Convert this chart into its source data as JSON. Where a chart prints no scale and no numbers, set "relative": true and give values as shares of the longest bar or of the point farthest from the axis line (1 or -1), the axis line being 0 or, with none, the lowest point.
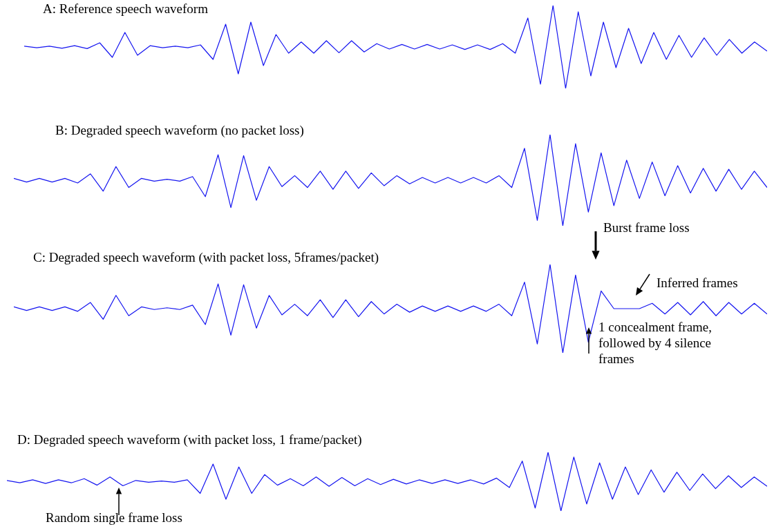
{
  "chart_data": [
    {
      "type": "line",
      "title": "A: Reference speech waveform",
      "relative": true,
      "categories": [
        null,
        null,
        null,
        null,
        null,
        null,
        null,
        null,
        null,
        null,
        null,
        null,
        null,
        null,
        null,
        null,
        null,
        null,
        null,
        null,
        null,
        null,
        null,
        null,
        null,
        null,
        null,
        null,
        null,
        null,
        null,
        null,
        null,
        null,
        null,
        null,
        null,
        null,
        null,
        null,
        null,
        null,
        null,
        null,
        null,
        null,
        null,
        null,
        null,
        null,
        null,
        null,
        null,
        null,
        null,
        null,
        null,
        null,
        null,
        null
      ],
      "series": [
        {
          "color": "#1414f0",
          "values": [
            0.51,
            0.49,
            0.51,
            0.485,
            0.515,
            0.48,
            0.55,
            0.375,
            0.675,
            0.4,
            0.515,
            0.49,
            0.51,
            0.49,
            0.525,
            0.35,
            0.775,
            0.175,
            0.8,
            0.275,
            0.65,
            0.425,
            0.56,
            0.425,
            0.575,
            0.43,
            0.575,
            0.44,
            0.54,
            0.475,
            0.53,
            0.475,
            0.53,
            0.475,
            0.525,
            0.47,
            0.525,
            0.47,
            0.54,
            0.425,
            0.85,
            0.05,
            1,
            0,
            0.925,
            0.15,
            0.8,
            0.25,
            0.725,
            0.3,
            0.675,
            0.35,
            0.64,
            0.375,
            0.61,
            0.4,
            0.59,
            0.425,
            0.56,
            0.45
          ]
        }
      ]
    },
    {
      "type": "line",
      "title": "B: Degraded speech waveform (no packet loss)",
      "relative": true,
      "categories": [
        null,
        null,
        null,
        null,
        null,
        null,
        null,
        null,
        null,
        null,
        null,
        null,
        null,
        null,
        null,
        null,
        null,
        null,
        null,
        null,
        null,
        null,
        null,
        null,
        null,
        null,
        null,
        null,
        null,
        null,
        null,
        null,
        null,
        null,
        null,
        null,
        null,
        null,
        null,
        null,
        null,
        null,
        null,
        null,
        null,
        null,
        null,
        null,
        null,
        null,
        null,
        null,
        null,
        null,
        null,
        null,
        null,
        null,
        null,
        null
      ],
      "series": [
        {
          "color": "#1414f0",
          "values": [
            0.52,
            0.48,
            0.52,
            0.48,
            0.52,
            0.47,
            0.57,
            0.38,
            0.65,
            0.42,
            0.52,
            0.49,
            0.51,
            0.49,
            0.54,
            0.32,
            0.78,
            0.2,
            0.77,
            0.28,
            0.65,
            0.43,
            0.55,
            0.42,
            0.6,
            0.4,
            0.6,
            0.41,
            0.58,
            0.44,
            0.55,
            0.46,
            0.53,
            0.47,
            0.53,
            0.47,
            0.53,
            0.47,
            0.55,
            0.42,
            0.85,
            0.06,
            1,
            0,
            0.9,
            0.15,
            0.8,
            0.22,
            0.72,
            0.3,
            0.7,
            0.33,
            0.66,
            0.36,
            0.63,
            0.38,
            0.62,
            0.4,
            0.6,
            0.42
          ]
        }
      ]
    },
    {
      "type": "line",
      "title": "C: Degraded speech waveform (with packet loss, 5frames/packet)",
      "relative": true,
      "categories": [
        null,
        null,
        null,
        null,
        null,
        null,
        null,
        null,
        null,
        null,
        null,
        null,
        null,
        null,
        null,
        null,
        null,
        null,
        null,
        null,
        null,
        null,
        null,
        null,
        null,
        null,
        null,
        null,
        null,
        null,
        null,
        null,
        null,
        null,
        null,
        null,
        null,
        null,
        null,
        null,
        null,
        null,
        null,
        null,
        null,
        null,
        null,
        null,
        null,
        null,
        null,
        null,
        null,
        null,
        null,
        null,
        null,
        null,
        null,
        null
      ],
      "annotations": [
        "Burst frame loss",
        "Inferred frames",
        "1 concealment frame, followed by 4 silence frames"
      ],
      "series": [
        {
          "color": "#1414f0",
          "values": [
            0.52,
            0.48,
            0.52,
            0.48,
            0.52,
            0.47,
            0.57,
            0.38,
            0.65,
            0.42,
            0.52,
            0.49,
            0.51,
            0.49,
            0.54,
            0.32,
            0.78,
            0.2,
            0.77,
            0.28,
            0.65,
            0.43,
            0.55,
            0.42,
            0.6,
            0.4,
            0.6,
            0.41,
            0.58,
            0.44,
            0.55,
            0.46,
            0.53,
            0.47,
            0.53,
            0.47,
            0.53,
            0.47,
            0.55,
            0.42,
            0.8,
            0.1,
            1,
            0,
            0.88,
            0.12,
            0.7,
            0.5,
            0.5,
            0.5,
            0.56,
            0.44,
            0.57,
            0.43,
            0.58,
            0.42,
            0.57,
            0.44,
            0.56,
            0.44
          ]
        }
      ]
    },
    {
      "type": "line",
      "title": "D: Degraded speech waveform (with packet loss, 1 frame/packet)",
      "relative": true,
      "categories": [
        null,
        null,
        null,
        null,
        null,
        null,
        null,
        null,
        null,
        null,
        null,
        null,
        null,
        null,
        null,
        null,
        null,
        null,
        null,
        null,
        null,
        null,
        null,
        null,
        null,
        null,
        null,
        null,
        null,
        null,
        null,
        null,
        null,
        null,
        null,
        null,
        null,
        null,
        null,
        null,
        null,
        null,
        null,
        null,
        null,
        null,
        null,
        null,
        null,
        null,
        null,
        null,
        null,
        null,
        null,
        null,
        null,
        null,
        null,
        null
      ],
      "annotations": [
        "Random single frame loss"
      ],
      "series": [
        {
          "color": "#1414f0",
          "values": [
            0.52,
            0.48,
            0.53,
            0.47,
            0.53,
            0.48,
            0.55,
            0.44,
            0.58,
            0.43,
            0.52,
            0.49,
            0.51,
            0.49,
            0.53,
            0.3,
            0.8,
            0.2,
            0.75,
            0.3,
            0.62,
            0.44,
            0.55,
            0.43,
            0.58,
            0.42,
            0.57,
            0.43,
            0.55,
            0.45,
            0.54,
            0.46,
            0.53,
            0.47,
            0.53,
            0.47,
            0.53,
            0.46,
            0.56,
            0.4,
            0.85,
            0.05,
            1,
            0,
            0.92,
            0.12,
            0.82,
            0.2,
            0.75,
            0.28,
            0.7,
            0.32,
            0.66,
            0.35,
            0.63,
            0.38,
            0.6,
            0.4,
            0.58,
            0.42
          ]
        }
      ]
    }
  ]
}
